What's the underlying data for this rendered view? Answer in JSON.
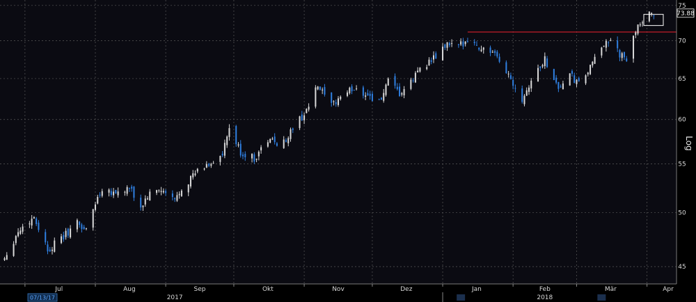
{
  "chart_data": {
    "type": "candlestick",
    "y_scale": "log",
    "scale_label": "Log",
    "ylim": [
      43.5,
      75.8
    ],
    "y_ticks": [
      "75",
      "70",
      "65",
      "60",
      "55",
      "50",
      "45"
    ],
    "x_months": [
      "Jul",
      "Aug",
      "Sep",
      "Okt",
      "Nov",
      "Dez",
      "Jan",
      "Feb",
      "Mär",
      "Apr"
    ],
    "x_years": [
      "2017",
      "2018"
    ],
    "date_badge": "07/13/17",
    "last_price": "73.88",
    "resistance_level": 71.2,
    "resistance_from_date": "2018-01-12",
    "grid": true,
    "colors": {
      "background": "#000000",
      "panel": "#0b0b12",
      "up": "#d9d9d9",
      "down": "#2f7fe0",
      "resistance": "#c41e2a",
      "grid": "#5a5a5a"
    },
    "close_path": [
      [
        "2017-06-22",
        45.8
      ],
      [
        "2017-06-28",
        48.2
      ],
      [
        "2017-07-05",
        49.6
      ],
      [
        "2017-07-11",
        46.5
      ],
      [
        "2017-07-17",
        47.5
      ],
      [
        "2017-07-24",
        49.0
      ],
      [
        "2017-07-28",
        48.3
      ],
      [
        "2017-08-01",
        51.0
      ],
      [
        "2017-08-04",
        52.5
      ],
      [
        "2017-08-10",
        52.0
      ],
      [
        "2017-08-16",
        52.4
      ],
      [
        "2017-08-21",
        50.5
      ],
      [
        "2017-08-24",
        51.6
      ],
      [
        "2017-08-29",
        52.3
      ],
      [
        "2017-09-05",
        51.2
      ],
      [
        "2017-09-08",
        52.5
      ],
      [
        "2017-09-14",
        54.0
      ],
      [
        "2017-09-20",
        55.0
      ],
      [
        "2017-09-26",
        55.9
      ],
      [
        "2017-09-29",
        58.9
      ],
      [
        "2017-10-04",
        56.2
      ],
      [
        "2017-10-10",
        55.6
      ],
      [
        "2017-10-16",
        57.6
      ],
      [
        "2017-10-23",
        57.3
      ],
      [
        "2017-10-27",
        59.0
      ],
      [
        "2017-11-02",
        61.0
      ],
      [
        "2017-11-07",
        64.0
      ],
      [
        "2017-11-13",
        61.5
      ],
      [
        "2017-11-17",
        62.8
      ],
      [
        "2017-11-23",
        63.8
      ],
      [
        "2017-11-29",
        63.0
      ],
      [
        "2017-12-04",
        62.0
      ],
      [
        "2017-12-08",
        64.5
      ],
      [
        "2017-12-13",
        63.0
      ],
      [
        "2017-12-18",
        64.4
      ],
      [
        "2017-12-22",
        66.5
      ],
      [
        "2017-12-28",
        67.5
      ],
      [
        "2018-01-03",
        69.5
      ],
      [
        "2018-01-08",
        69.0
      ],
      [
        "2018-01-12",
        70.5
      ],
      [
        "2018-01-16",
        69.2
      ],
      [
        "2018-01-22",
        68.6
      ],
      [
        "2018-01-29",
        66.0
      ],
      [
        "2018-02-05",
        62.5
      ],
      [
        "2018-02-09",
        64.8
      ],
      [
        "2018-02-15",
        67.5
      ],
      [
        "2018-02-21",
        63.8
      ],
      [
        "2018-02-26",
        65.4
      ],
      [
        "2018-03-02",
        64.2
      ],
      [
        "2018-03-08",
        66.8
      ],
      [
        "2018-03-14",
        70.3
      ],
      [
        "2018-03-19",
        68.5
      ],
      [
        "2018-03-23",
        67.2
      ],
      [
        "2018-03-28",
        72.5
      ],
      [
        "2018-04-04",
        73.9
      ]
    ]
  }
}
